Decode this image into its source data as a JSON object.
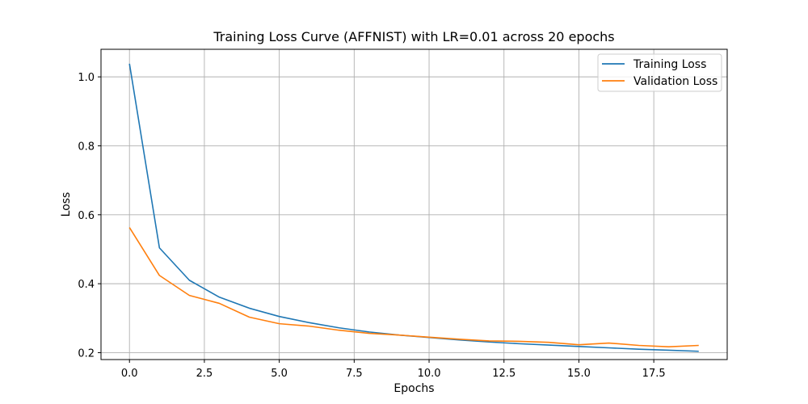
{
  "chart_data": {
    "type": "line",
    "title": "Training Loss Curve (AFFNIST) with LR=0.01 across 20 epochs",
    "xlabel": "Epochs",
    "ylabel": "Loss",
    "xlim": [
      -0.95,
      19.95
    ],
    "ylim": [
      0.18,
      1.08
    ],
    "x_ticks": [
      0.0,
      2.5,
      5.0,
      7.5,
      10.0,
      12.5,
      15.0,
      17.5
    ],
    "x_tick_labels": [
      "0.0",
      "2.5",
      "5.0",
      "7.5",
      "10.0",
      "12.5",
      "15.0",
      "17.5"
    ],
    "y_ticks": [
      0.2,
      0.4,
      0.6,
      0.8,
      1.0
    ],
    "y_tick_labels": [
      "0.2",
      "0.4",
      "0.6",
      "0.8",
      "1.0"
    ],
    "grid": true,
    "legend_position": "top-right",
    "x": [
      0,
      1,
      2,
      3,
      4,
      5,
      6,
      7,
      8,
      9,
      10,
      11,
      12,
      13,
      14,
      15,
      16,
      17,
      18,
      19
    ],
    "series": [
      {
        "name": "Training Loss",
        "color": "#1f77b4",
        "values": [
          1.038,
          0.504,
          0.41,
          0.361,
          0.329,
          0.305,
          0.287,
          0.272,
          0.26,
          0.251,
          0.244,
          0.237,
          0.231,
          0.226,
          0.222,
          0.218,
          0.214,
          0.21,
          0.207,
          0.204
        ]
      },
      {
        "name": "Validation Loss",
        "color": "#ff7f0e",
        "values": [
          0.563,
          0.424,
          0.366,
          0.343,
          0.303,
          0.284,
          0.277,
          0.265,
          0.256,
          0.251,
          0.245,
          0.239,
          0.234,
          0.233,
          0.23,
          0.223,
          0.228,
          0.221,
          0.217,
          0.221
        ]
      }
    ]
  }
}
